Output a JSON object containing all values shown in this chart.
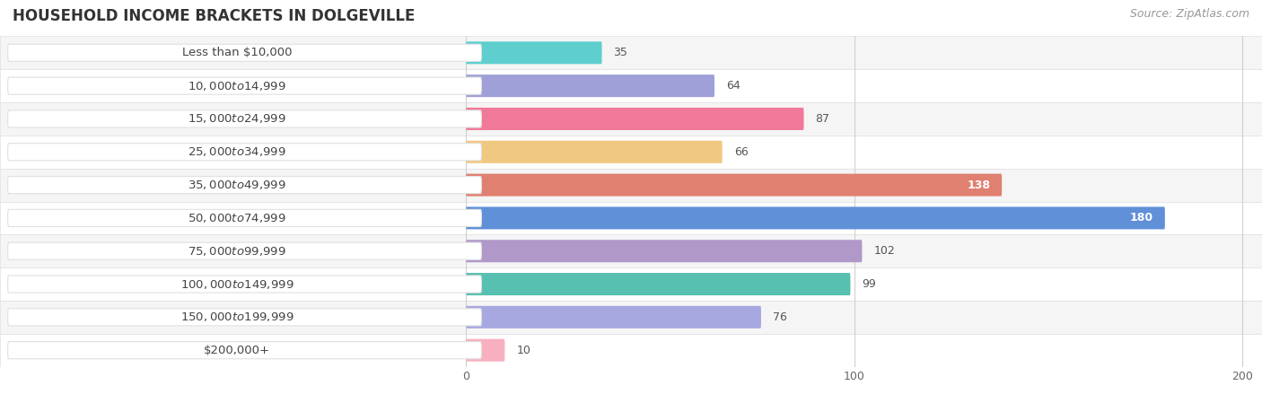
{
  "title": "HOUSEHOLD INCOME BRACKETS IN DOLGEVILLE",
  "source": "Source: ZipAtlas.com",
  "categories": [
    "Less than $10,000",
    "$10,000 to $14,999",
    "$15,000 to $24,999",
    "$25,000 to $34,999",
    "$35,000 to $49,999",
    "$50,000 to $74,999",
    "$75,000 to $99,999",
    "$100,000 to $149,999",
    "$150,000 to $199,999",
    "$200,000+"
  ],
  "values": [
    35,
    64,
    87,
    66,
    138,
    180,
    102,
    99,
    76,
    10
  ],
  "bar_colors": [
    "#5ecece",
    "#a0a0d8",
    "#f07898",
    "#f0c880",
    "#e08070",
    "#6090d8",
    "#b098c8",
    "#58c0b0",
    "#a8a8e0",
    "#f8b0c0"
  ],
  "xlim": [
    -5,
    205
  ],
  "xticks": [
    0,
    100,
    200
  ],
  "value_label_color_inside": "#ffffff",
  "value_label_color_outside": "#555555",
  "inside_threshold": 130,
  "bar_height": 0.68,
  "figure_bg": "#ffffff",
  "row_bg_even": "#f5f5f5",
  "row_bg_odd": "#ffffff",
  "row_border": "#e0e0e0",
  "title_fontsize": 12,
  "source_fontsize": 9,
  "label_fontsize": 9.5,
  "value_fontsize": 9
}
